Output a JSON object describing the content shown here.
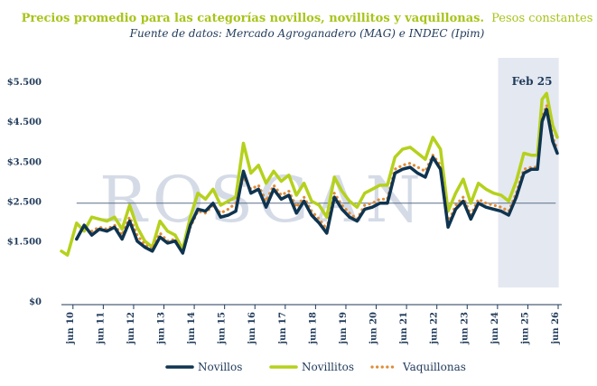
{
  "chart_data": {
    "type": "line",
    "title": "Precios promedio para las categorías novillos, novillitos y vaquillonas.",
    "title_suffix": "Pesos constantes",
    "subtitle": "Fuente de datos: Mercado Agroganadero (MAG) e INDEC (Ipim)",
    "y_ticks": [
      "$0",
      "$1.500",
      "$2.500",
      "$3.500",
      "$4.500",
      "$5.500"
    ],
    "y_tick_values": [
      0,
      1500,
      2500,
      3500,
      4500,
      5500
    ],
    "ylim": [
      0,
      5500
    ],
    "x_ticks": [
      "jun 10",
      "jun 11",
      "jun 12",
      "jun 13",
      "jun 14",
      "jun 15",
      "jun 16",
      "jun 17",
      "jun 18",
      "jun 19",
      "jun 20",
      "jun 21",
      "jun 22",
      "jun 23",
      "jun 24",
      "jun 25",
      "jun 26"
    ],
    "x_tick_values": [
      2010.5,
      2011.5,
      2012.5,
      2013.5,
      2014.5,
      2015.5,
      2016.5,
      2017.5,
      2018.5,
      2019.5,
      2020.5,
      2021.5,
      2022.5,
      2023.5,
      2024.5,
      2025.5,
      2026.5
    ],
    "xlim": [
      2010.0,
      2026.5
    ],
    "reference_line": 2450,
    "highlight": {
      "label": "Feb 25",
      "from": 2024.4,
      "to": 2026.4
    },
    "legend_position": "bottom",
    "watermark": "ROSGAN",
    "series": [
      {
        "name": "Novillos",
        "color": "#0e3450",
        "dash": "solid",
        "x": [
          2010.5,
          2010.75,
          2011.0,
          2011.25,
          2011.5,
          2011.75,
          2012.0,
          2012.25,
          2012.5,
          2012.75,
          2013.0,
          2013.25,
          2013.5,
          2013.75,
          2014.0,
          2014.25,
          2014.5,
          2014.75,
          2015.0,
          2015.25,
          2015.5,
          2015.75,
          2016.0,
          2016.25,
          2016.5,
          2016.75,
          2017.0,
          2017.25,
          2017.5,
          2017.75,
          2018.0,
          2018.25,
          2018.5,
          2018.75,
          2019.0,
          2019.25,
          2019.5,
          2019.75,
          2020.0,
          2020.25,
          2020.5,
          2020.75,
          2021.0,
          2021.25,
          2021.5,
          2021.75,
          2022.0,
          2022.25,
          2022.5,
          2022.75,
          2023.0,
          2023.25,
          2023.5,
          2023.75,
          2024.0,
          2024.25,
          2024.5,
          2024.75,
          2025.0,
          2025.25,
          2025.5,
          2025.7,
          2025.85,
          2026.0,
          2026.2,
          2026.35
        ],
        "y": [
          1550,
          1900,
          1650,
          1800,
          1750,
          1850,
          1550,
          2000,
          1500,
          1350,
          1250,
          1600,
          1450,
          1500,
          1200,
          1900,
          2300,
          2250,
          2450,
          2100,
          2150,
          2250,
          3250,
          2700,
          2800,
          2350,
          2800,
          2550,
          2650,
          2200,
          2500,
          2150,
          1950,
          1700,
          2600,
          2300,
          2100,
          2000,
          2300,
          2350,
          2450,
          2450,
          3200,
          3300,
          3350,
          3200,
          3100,
          3600,
          3300,
          1850,
          2300,
          2500,
          2050,
          2450,
          2350,
          2300,
          2250,
          2150,
          2600,
          3200,
          3300,
          3300,
          4500,
          4800,
          4000,
          3700
        ]
      },
      {
        "name": "Novillitos",
        "color": "#b5d11c",
        "dash": "solid",
        "x": [
          2010.0,
          2010.2,
          2010.5,
          2010.75,
          2011.0,
          2011.25,
          2011.5,
          2011.75,
          2012.0,
          2012.25,
          2012.5,
          2012.75,
          2013.0,
          2013.25,
          2013.5,
          2013.75,
          2014.0,
          2014.25,
          2014.5,
          2014.75,
          2015.0,
          2015.25,
          2015.5,
          2015.75,
          2016.0,
          2016.25,
          2016.5,
          2016.75,
          2017.0,
          2017.25,
          2017.5,
          2017.75,
          2018.0,
          2018.25,
          2018.5,
          2018.75,
          2019.0,
          2019.25,
          2019.5,
          2019.75,
          2020.0,
          2020.25,
          2020.5,
          2020.75,
          2021.0,
          2021.25,
          2021.5,
          2021.75,
          2022.0,
          2022.25,
          2022.5,
          2022.75,
          2023.0,
          2023.25,
          2023.5,
          2023.75,
          2024.0,
          2024.25,
          2024.5,
          2024.75,
          2025.0,
          2025.25,
          2025.5,
          2025.7,
          2025.85,
          2026.0,
          2026.2,
          2026.35
        ],
        "y": [
          1250,
          1150,
          1950,
          1750,
          2100,
          2050,
          2000,
          2100,
          1800,
          2400,
          1850,
          1500,
          1350,
          2000,
          1750,
          1650,
          1300,
          2100,
          2700,
          2550,
          2800,
          2400,
          2500,
          2600,
          3950,
          3200,
          3400,
          2950,
          3250,
          3000,
          3150,
          2650,
          2950,
          2500,
          2400,
          2100,
          3100,
          2750,
          2500,
          2350,
          2700,
          2800,
          2900,
          2900,
          3600,
          3800,
          3850,
          3700,
          3550,
          4100,
          3800,
          2250,
          2700,
          3050,
          2450,
          2950,
          2800,
          2700,
          2650,
          2500,
          3000,
          3700,
          3650,
          3650,
          5050,
          5200,
          4400,
          4100
        ]
      },
      {
        "name": "Vaquillonas",
        "color": "#e08b36",
        "dash": "dotted",
        "x": [
          2011.0,
          2011.25,
          2011.5,
          2011.75,
          2012.0,
          2012.25,
          2012.5,
          2012.75,
          2013.0,
          2013.25,
          2013.5,
          2013.75,
          2014.0,
          2014.25,
          2014.5,
          2014.75,
          2015.0,
          2015.25,
          2015.5,
          2015.75,
          2016.0,
          2016.25,
          2016.5,
          2016.75,
          2017.0,
          2017.25,
          2017.5,
          2017.75,
          2018.0,
          2018.25,
          2018.5,
          2018.75,
          2019.0,
          2019.25,
          2019.5,
          2019.75,
          2020.0,
          2020.25,
          2020.5,
          2020.75,
          2021.0,
          2021.25,
          2021.5,
          2021.75,
          2022.0,
          2022.25,
          2022.5,
          2022.75,
          2023.0,
          2023.25,
          2023.5,
          2023.75,
          2024.0,
          2024.25,
          2024.5,
          2024.75,
          2025.0,
          2025.25,
          2025.5,
          2025.7,
          2025.85,
          2026.0,
          2026.2,
          2026.35
        ],
        "y": [
          1750,
          1850,
          1800,
          1900,
          1650,
          2100,
          1650,
          1400,
          1300,
          1700,
          1500,
          1550,
          1200,
          1850,
          2250,
          2200,
          2400,
          2200,
          2300,
          2450,
          3100,
          2800,
          2900,
          2500,
          2900,
          2650,
          2750,
          2350,
          2600,
          2250,
          2050,
          1800,
          2700,
          2400,
          2200,
          2050,
          2400,
          2450,
          2550,
          2550,
          3300,
          3400,
          3450,
          3350,
          3250,
          3650,
          3400,
          1950,
          2400,
          2600,
          2150,
          2550,
          2450,
          2400,
          2350,
          2250,
          2700,
          3300,
          3350,
          3350,
          4600,
          4900,
          4100,
          3800
        ]
      }
    ]
  }
}
